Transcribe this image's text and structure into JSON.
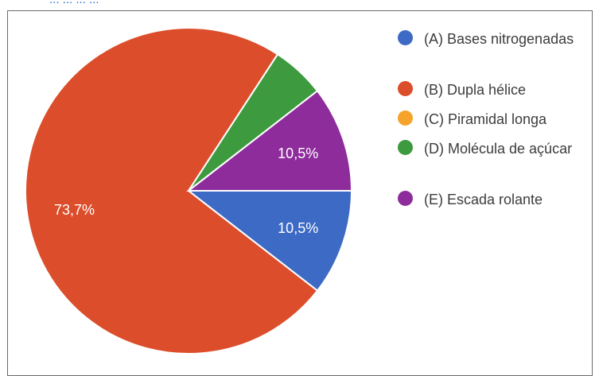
{
  "page": {
    "top_text": "... ... ... ..."
  },
  "chart_data": {
    "type": "pie",
    "title": "",
    "slices": [
      {
        "label": "(A) Bases nitrogenadas",
        "value": 10.5,
        "display": "10,5%",
        "color": "#3d6ac4"
      },
      {
        "label": "(B) Dupla hélice",
        "value": 73.7,
        "display": "73,7%",
        "color": "#dc4e2b"
      },
      {
        "label": "(C) Piramidal longa",
        "value": 0,
        "display": "",
        "color": "#f5a32a"
      },
      {
        "label": "(D) Molécula de açúcar",
        "value": 5.3,
        "display": "",
        "color": "#3e9a3e"
      },
      {
        "label": "(E) Escada rolante",
        "value": 10.5,
        "display": "10,5%",
        "color": "#8e2c9c"
      }
    ],
    "legend_position": "right"
  }
}
